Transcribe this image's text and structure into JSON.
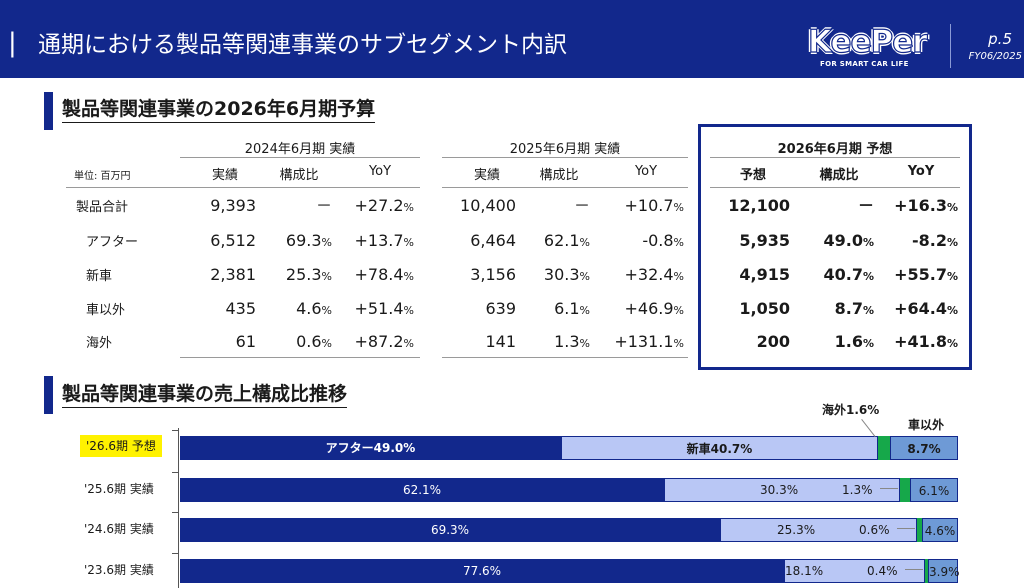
{
  "header": {
    "bar": "|",
    "title": "通期における製品等関連事業のサブセグメント内訳",
    "logo_text": "KeePer",
    "logo_tagline": "FOR SMART CAR LIFE",
    "page": "p.5",
    "fiscal": "FY06/2025"
  },
  "section1": {
    "title": "製品等関連事業の2026年6月期予算"
  },
  "table": {
    "unit": "単位: 百万円",
    "groups": [
      "2024年6月期 実績",
      "2025年6月期 実績",
      "2026年6月期 予想"
    ],
    "col_heads": {
      "g1": [
        "実績",
        "構成比",
        "YoY"
      ],
      "g2": [
        "実績",
        "構成比",
        "YoY"
      ],
      "g3": [
        "予想",
        "構成比",
        "YoY"
      ]
    },
    "rows": [
      {
        "label": "製品合計",
        "v24": "9,393",
        "s24": "－",
        "s24u": "",
        "y24": "+27.2",
        "y24u": "%",
        "v25": "10,400",
        "s25": "－",
        "s25u": "",
        "y25": "+10.7",
        "y25u": "%",
        "v26": "12,100",
        "s26": "－",
        "s26u": "",
        "y26": "+16.3",
        "y26u": "%"
      },
      {
        "label": "アフター",
        "v24": "6,512",
        "s24": "69.3",
        "s24u": "%",
        "y24": "+13.7",
        "y24u": "%",
        "v25": "6,464",
        "s25": "62.1",
        "s25u": "%",
        "y25": "-0.8",
        "y25u": "%",
        "v26": "5,935",
        "s26": "49.0",
        "s26u": "%",
        "y26": "-8.2",
        "y26u": "%"
      },
      {
        "label": "新車",
        "v24": "2,381",
        "s24": "25.3",
        "s24u": "%",
        "y24": "+78.4",
        "y24u": "%",
        "v25": "3,156",
        "s25": "30.3",
        "s25u": "%",
        "y25": "+32.4",
        "y25u": "%",
        "v26": "4,915",
        "s26": "40.7",
        "s26u": "%",
        "y26": "+55.7",
        "y26u": "%"
      },
      {
        "label": "車以外",
        "v24": "435",
        "s24": "4.6",
        "s24u": "%",
        "y24": "+51.4",
        "y24u": "%",
        "v25": "639",
        "s25": "6.1",
        "s25u": "%",
        "y25": "+46.9",
        "y25u": "%",
        "v26": "1,050",
        "s26": "8.7",
        "s26u": "%",
        "y26": "+64.4",
        "y26u": "%"
      },
      {
        "label": "海外",
        "v24": "61",
        "s24": "0.6",
        "s24u": "%",
        "y24": "+87.2",
        "y24u": "%",
        "v25": "141",
        "s25": "1.3",
        "s25u": "%",
        "y25": "+131.1",
        "y25u": "%",
        "v26": "200",
        "s26": "1.6",
        "s26u": "%",
        "y26": "+41.8",
        "y26u": "%"
      }
    ]
  },
  "section2": {
    "title": "製品等関連事業の売上構成比推移"
  },
  "bars": {
    "colors": {
      "after": "#12288c",
      "new": "#b9c7f5",
      "kaigai": "#16a84a",
      "other": "#6e9ad6"
    },
    "rows": [
      {
        "label": "'26.6期 予想",
        "highlight": true,
        "after": 49.0,
        "new": 40.7,
        "kaigai": 1.6,
        "other": 8.7,
        "after_txt": "アフター49.0%",
        "new_txt": "新車40.7%",
        "kaigai_txt": "海外1.6%",
        "other_txt": "8.7%",
        "other_head": "車以外"
      },
      {
        "label": "'25.6期 実績",
        "highlight": false,
        "after": 62.1,
        "new": 30.3,
        "kaigai": 1.3,
        "other": 6.1,
        "after_txt": "62.1%",
        "new_txt": "30.3%",
        "kaigai_txt": "1.3%",
        "other_txt": "6.1%"
      },
      {
        "label": "'24.6期 実績",
        "highlight": false,
        "after": 69.3,
        "new": 25.3,
        "kaigai": 0.6,
        "other": 4.6,
        "after_txt": "69.3%",
        "new_txt": "25.3%",
        "kaigai_txt": "0.6%",
        "other_txt": "4.6%"
      },
      {
        "label": "'23.6期 実績",
        "highlight": false,
        "after": 77.6,
        "new": 18.1,
        "kaigai": 0.4,
        "other": 3.9,
        "after_txt": "77.6%",
        "new_txt": "18.1%",
        "kaigai_txt": "0.4%",
        "other_txt": "3.9%"
      }
    ]
  }
}
